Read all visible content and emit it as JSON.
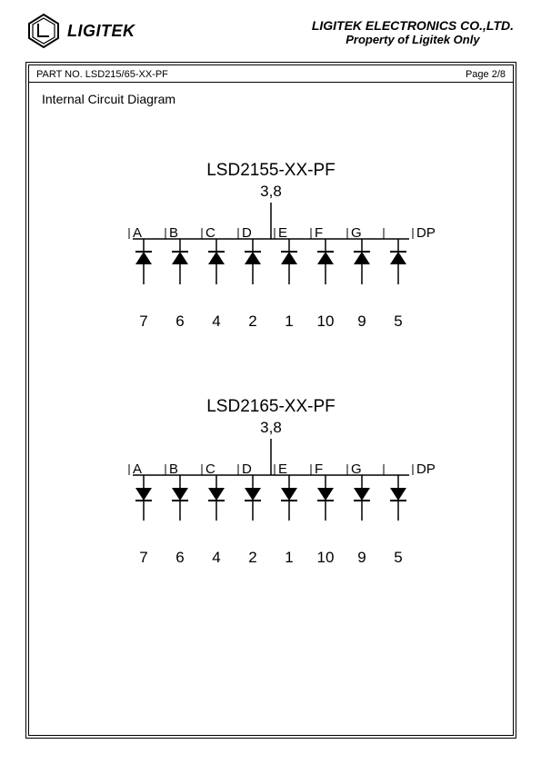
{
  "company": {
    "name": "LIGITEK ELECTRONICS CO.,LTD.",
    "sub": "Property of Ligitek Only",
    "brand": "LIGITEK"
  },
  "header": {
    "part_no_label": "PART NO. LSD215/65-XX-PF",
    "page_label": "Page 2/8"
  },
  "section_title": "Internal Circuit Diagram",
  "circuit1": {
    "title": "LSD2155-XX-PF",
    "common_pins": "3,8",
    "direction": "up",
    "segments": [
      {
        "label": "A",
        "pin": "7"
      },
      {
        "label": "B",
        "pin": "6"
      },
      {
        "label": "C",
        "pin": "4"
      },
      {
        "label": "D",
        "pin": "2"
      },
      {
        "label": "E",
        "pin": "1"
      },
      {
        "label": "F",
        "pin": "10"
      },
      {
        "label": "G",
        "pin": "9"
      },
      {
        "label": "DP",
        "pin": "5"
      }
    ]
  },
  "circuit2": {
    "title": "LSD2165-XX-PF",
    "common_pins": "3,8",
    "direction": "down",
    "segments": [
      {
        "label": "A",
        "pin": "7"
      },
      {
        "label": "B",
        "pin": "6"
      },
      {
        "label": "C",
        "pin": "4"
      },
      {
        "label": "D",
        "pin": "2"
      },
      {
        "label": "E",
        "pin": "1"
      },
      {
        "label": "F",
        "pin": "10"
      },
      {
        "label": "G",
        "pin": "9"
      },
      {
        "label": "DP",
        "pin": "5"
      }
    ]
  },
  "style": {
    "diode_fill": "#000000",
    "line_color": "#000000",
    "bus_y": 0,
    "diode_w": 18,
    "diode_h": 14
  }
}
